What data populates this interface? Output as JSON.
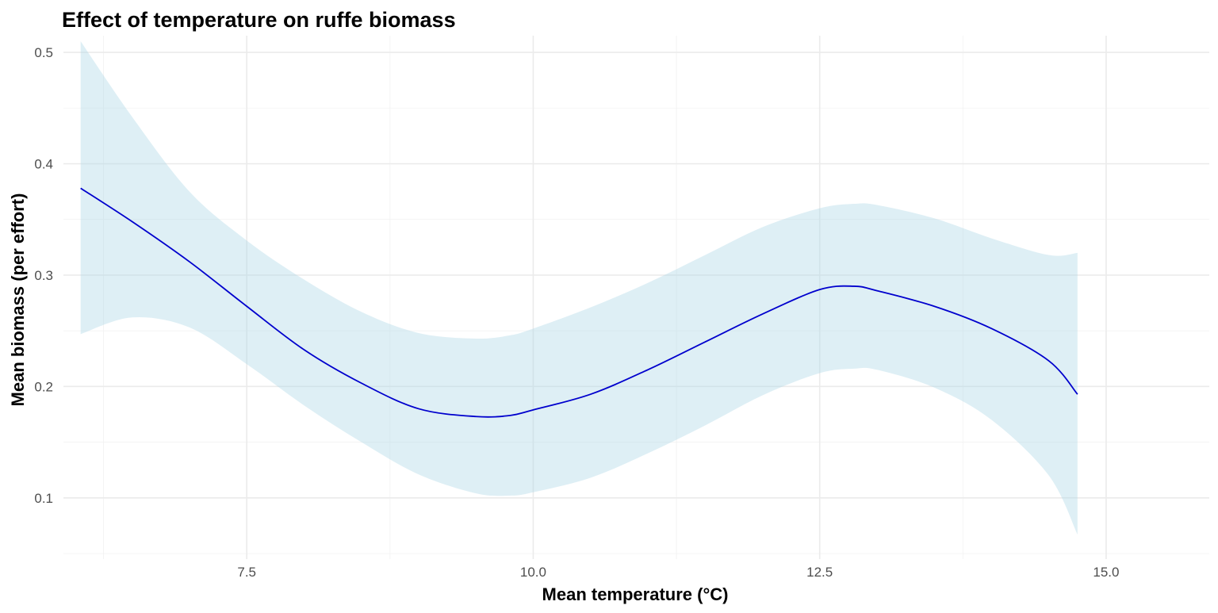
{
  "chart_data": {
    "type": "line",
    "title": "Effect of temperature on ruffe biomass",
    "xlabel": "Mean temperature (°C)",
    "ylabel": "Mean biomass (per effort)",
    "xlim": [
      5.9,
      15.9
    ],
    "ylim": [
      0.045,
      0.515
    ],
    "x_ticks": [
      7.5,
      10.0,
      12.5,
      15.0
    ],
    "x_tick_labels": [
      "7.5",
      "10.0",
      "12.5",
      "15.0"
    ],
    "y_ticks": [
      0.1,
      0.2,
      0.3,
      0.4,
      0.5
    ],
    "y_tick_labels": [
      "0.1",
      "0.2",
      "0.3",
      "0.4",
      "0.5"
    ],
    "grid": true,
    "line_color": "#0000cd",
    "ribbon_color": "#add8e6",
    "series": [
      {
        "x": [
          6.05,
          6.5,
          7.0,
          7.5,
          8.0,
          8.5,
          9.0,
          9.5,
          9.8,
          10.0,
          10.5,
          11.0,
          11.5,
          12.0,
          12.5,
          12.8,
          13.0,
          13.5,
          14.0,
          14.5,
          14.75
        ],
        "y": [
          0.378,
          0.348,
          0.312,
          0.272,
          0.233,
          0.203,
          0.18,
          0.173,
          0.174,
          0.179,
          0.193,
          0.215,
          0.24,
          0.265,
          0.287,
          0.29,
          0.286,
          0.272,
          0.252,
          0.223,
          0.193
        ],
        "lower": [
          0.247,
          0.262,
          0.253,
          0.22,
          0.183,
          0.15,
          0.121,
          0.104,
          0.102,
          0.105,
          0.118,
          0.14,
          0.165,
          0.192,
          0.212,
          0.216,
          0.215,
          0.199,
          0.17,
          0.12,
          0.067
        ],
        "upper": [
          0.51,
          0.442,
          0.375,
          0.331,
          0.296,
          0.267,
          0.248,
          0.243,
          0.246,
          0.252,
          0.271,
          0.293,
          0.318,
          0.343,
          0.36,
          0.364,
          0.363,
          0.351,
          0.333,
          0.318,
          0.32
        ]
      }
    ]
  }
}
